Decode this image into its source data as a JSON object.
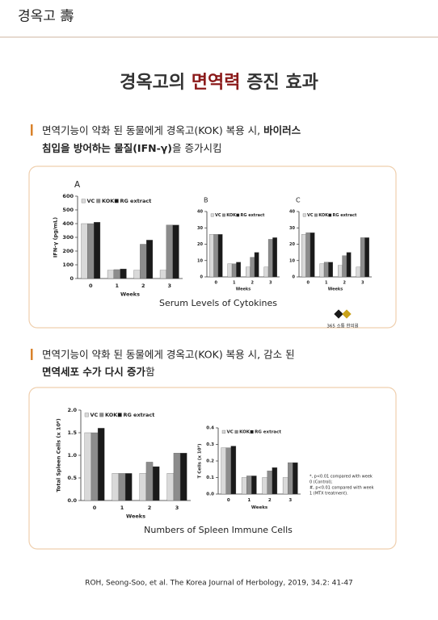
{
  "header": {
    "title": "경옥고 壽"
  },
  "title": {
    "prefix": "경옥고의 ",
    "highlight": "면역력",
    "suffix": " 증진 효과"
  },
  "section1": {
    "line1": "면역기능이 약화 된 동물에게 경옥고(KOK) 복용 시, ",
    "line1_bold": "바이러스",
    "line2_bold": "침입을 방어하는 물질(IFN-γ)",
    "line2": "을 증가시킴"
  },
  "figure1": {
    "caption": "Serum Levels of Cytokines",
    "logo": "365 소통 한의원",
    "charts": [
      {
        "type": "bar",
        "label": "A",
        "ylabel": "IFN-γ (pg/mL)",
        "xlabel": "Weeks",
        "categories": [
          "0",
          "1",
          "2",
          "3"
        ],
        "ylim": [
          0,
          600
        ],
        "yticks": [
          0,
          100,
          200,
          300,
          400,
          500,
          600
        ],
        "series": [
          {
            "name": "VC",
            "color": "#d9d9d9",
            "values": [
              400,
              60,
              60,
              60
            ]
          },
          {
            "name": "KOK",
            "color": "#8c8c8c",
            "values": [
              400,
              65,
              250,
              390
            ]
          },
          {
            "name": "RG extract",
            "color": "#1a1a1a",
            "values": [
              410,
              70,
              280,
              390
            ]
          }
        ]
      },
      {
        "type": "bar",
        "label": "B",
        "xlabel": "Weeks",
        "categories": [
          "0",
          "1",
          "2",
          "3"
        ],
        "ylim": [
          0,
          40
        ],
        "yticks": [
          0,
          10,
          20,
          30,
          40
        ],
        "series": [
          {
            "name": "VC",
            "color": "#d9d9d9",
            "values": [
              26,
              8,
              6,
              6
            ]
          },
          {
            "name": "KOK",
            "color": "#8c8c8c",
            "values": [
              26,
              8,
              12,
              23
            ]
          },
          {
            "name": "RG extract",
            "color": "#1a1a1a",
            "values": [
              26,
              9,
              15,
              24
            ]
          }
        ]
      },
      {
        "type": "bar",
        "label": "C",
        "xlabel": "Weeks",
        "categories": [
          "0",
          "1",
          "2",
          "3"
        ],
        "ylim": [
          0,
          40
        ],
        "yticks": [
          0,
          10,
          20,
          30,
          40
        ],
        "series": [
          {
            "name": "VC",
            "color": "#d9d9d9",
            "values": [
              26,
              8,
              7,
              6
            ]
          },
          {
            "name": "KOK",
            "color": "#8c8c8c",
            "values": [
              27,
              9,
              13,
              24
            ]
          },
          {
            "name": "RG extract",
            "color": "#1a1a1a",
            "values": [
              27,
              9,
              15,
              24
            ]
          }
        ]
      }
    ]
  },
  "section2": {
    "line1": "면역기능이 약화 된 동물에게 경옥고(KOK) 복용 시,  감소 된",
    "line2_bold": "면역세포 수가 다시 증가",
    "line2": "함"
  },
  "figure2": {
    "caption": "Numbers of Spleen Immune Cells",
    "footnote": [
      "*, p<0.01 compared with week",
      "0 (Control);",
      "#, p<0.01 compared with week",
      "1 (MTX treatment)."
    ],
    "charts": [
      {
        "type": "bar",
        "ylabel": "Total Spleen Cells (x 10⁸)",
        "xlabel": "Weeks",
        "categories": [
          "0",
          "1",
          "2",
          "3"
        ],
        "ylim": [
          0,
          2
        ],
        "yticks": [
          {
            "value": 0,
            "label": "0.0"
          },
          {
            "value": 0.5,
            "label": "0.5"
          },
          {
            "value": 1,
            "label": "1.0"
          },
          {
            "value": 1.5,
            "label": "1.5"
          },
          {
            "value": 2,
            "label": "2.0"
          }
        ],
        "series": [
          {
            "name": "VC",
            "color": "#d9d9d9",
            "values": [
              1.5,
              0.6,
              0.6,
              0.6
            ]
          },
          {
            "name": "KOK",
            "color": "#8c8c8c",
            "values": [
              1.5,
              0.6,
              0.85,
              1.05
            ]
          },
          {
            "name": "RG extract",
            "color": "#1a1a1a",
            "values": [
              1.6,
              0.6,
              0.75,
              1.05
            ]
          }
        ]
      },
      {
        "type": "bar",
        "ylabel": "T Cells (x 10⁸)",
        "xlabel": "Weeks",
        "categories": [
          "0",
          "1",
          "2",
          "3"
        ],
        "ylim": [
          0,
          0.4
        ],
        "yticks": [
          {
            "value": 0,
            "label": "0.0"
          },
          0.1,
          0.2,
          0.3,
          {
            "value": 0.4,
            "label": "0.4"
          }
        ],
        "series": [
          {
            "name": "VC",
            "color": "#d9d9d9",
            "values": [
              0.28,
              0.1,
              0.1,
              0.1
            ]
          },
          {
            "name": "KOK",
            "color": "#8c8c8c",
            "values": [
              0.28,
              0.11,
              0.14,
              0.19
            ]
          },
          {
            "name": "RG extract",
            "color": "#1a1a1a",
            "values": [
              0.29,
              0.11,
              0.16,
              0.19
            ]
          }
        ]
      }
    ]
  },
  "citation": "ROH, Seong-Soo, et al. The Korea Journal of Herbology, 2019, 34.2: 41-47"
}
